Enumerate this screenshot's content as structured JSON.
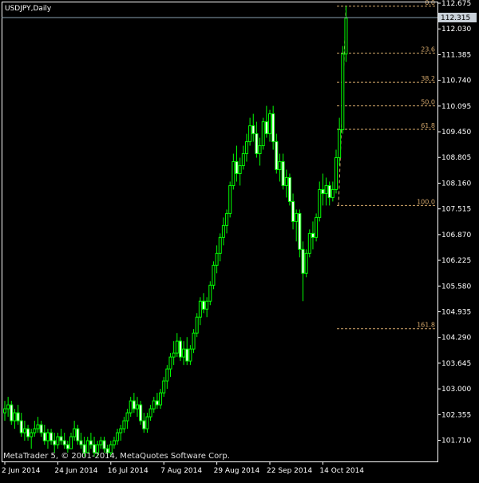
{
  "chart_data": {
    "type": "candlestick",
    "title": "USDJPY,Daily",
    "watermark": "MetaTrader 5, © 2001-2014, MetaQuotes Software Corp.",
    "current_price": "112.315",
    "ylim": [
      101.3,
      112.675
    ],
    "y_ticks": [
      "112.675",
      "112.030",
      "111.385",
      "110.740",
      "110.095",
      "109.450",
      "108.805",
      "108.160",
      "107.515",
      "106.870",
      "106.225",
      "105.580",
      "104.935",
      "104.290",
      "103.645",
      "103.000",
      "102.355",
      "101.710"
    ],
    "x_ticks": [
      {
        "label": "2 Jun 2014",
        "index": 0
      },
      {
        "label": "24 Jun 2014",
        "index": 16
      },
      {
        "label": "16 Jul 2014",
        "index": 32
      },
      {
        "label": "7 Aug 2014",
        "index": 48
      },
      {
        "label": "29 Aug 2014",
        "index": 64
      },
      {
        "label": "22 Sep 2014",
        "index": 80
      },
      {
        "label": "14 Oct 2014",
        "index": 96
      }
    ],
    "fibonacci": {
      "high": 112.6,
      "low": 107.6,
      "levels": [
        {
          "label": "0.0",
          "ratio": 0.0
        },
        {
          "label": "23.6",
          "ratio": 0.236
        },
        {
          "label": "38.2",
          "ratio": 0.382
        },
        {
          "label": "50.0",
          "ratio": 0.5
        },
        {
          "label": "61.8",
          "ratio": 0.618
        },
        {
          "label": "100.0",
          "ratio": 1.0
        },
        {
          "label": "161.8",
          "ratio": 1.618
        }
      ]
    },
    "candles": [
      [
        102.4,
        102.7,
        102.2,
        102.5
      ],
      [
        102.5,
        102.8,
        102.3,
        102.6
      ],
      [
        102.6,
        102.7,
        102.1,
        102.2
      ],
      [
        102.2,
        102.5,
        102.0,
        102.4
      ],
      [
        102.4,
        102.6,
        102.1,
        102.2
      ],
      [
        102.2,
        102.4,
        101.8,
        101.9
      ],
      [
        101.9,
        102.2,
        101.7,
        102.0
      ],
      [
        102.0,
        102.1,
        101.7,
        101.8
      ],
      [
        101.8,
        102.0,
        101.5,
        101.9
      ],
      [
        101.9,
        102.2,
        101.8,
        102.0
      ],
      [
        102.0,
        102.3,
        101.9,
        102.1
      ],
      [
        102.1,
        102.2,
        101.8,
        101.9
      ],
      [
        101.9,
        102.1,
        101.6,
        101.7
      ],
      [
        101.7,
        102.0,
        101.5,
        101.9
      ],
      [
        101.9,
        102.0,
        101.6,
        101.7
      ],
      [
        101.7,
        101.9,
        101.4,
        101.6
      ],
      [
        101.6,
        101.9,
        101.5,
        101.8
      ],
      [
        101.8,
        102.0,
        101.6,
        101.7
      ],
      [
        101.7,
        101.9,
        101.5,
        101.6
      ],
      [
        101.6,
        101.7,
        101.4,
        101.5
      ],
      [
        101.5,
        101.9,
        101.5,
        101.8
      ],
      [
        101.8,
        102.2,
        101.7,
        102.0
      ],
      [
        102.0,
        102.1,
        101.6,
        101.7
      ],
      [
        101.7,
        101.9,
        101.5,
        101.6
      ],
      [
        101.6,
        101.8,
        101.3,
        101.4
      ],
      [
        101.4,
        101.8,
        101.4,
        101.7
      ],
      [
        101.7,
        101.9,
        101.5,
        101.6
      ],
      [
        101.6,
        101.8,
        101.3,
        101.4
      ],
      [
        101.4,
        101.7,
        101.3,
        101.6
      ],
      [
        101.6,
        101.8,
        101.5,
        101.7
      ],
      [
        101.7,
        101.8,
        101.4,
        101.5
      ],
      [
        101.5,
        101.6,
        101.3,
        101.4
      ],
      [
        101.4,
        101.7,
        101.3,
        101.6
      ],
      [
        101.6,
        101.8,
        101.5,
        101.7
      ],
      [
        101.7,
        102.0,
        101.6,
        101.9
      ],
      [
        101.9,
        102.1,
        101.7,
        102.0
      ],
      [
        102.0,
        102.3,
        101.9,
        102.2
      ],
      [
        102.2,
        102.5,
        102.0,
        102.4
      ],
      [
        102.4,
        102.8,
        102.3,
        102.7
      ],
      [
        102.7,
        102.9,
        102.4,
        102.5
      ],
      [
        102.5,
        102.8,
        102.3,
        102.6
      ],
      [
        102.6,
        102.7,
        102.1,
        102.2
      ],
      [
        102.2,
        102.4,
        101.9,
        102.0
      ],
      [
        102.0,
        102.4,
        101.9,
        102.3
      ],
      [
        102.3,
        102.6,
        102.2,
        102.5
      ],
      [
        102.5,
        102.8,
        102.4,
        102.7
      ],
      [
        102.7,
        102.9,
        102.5,
        102.6
      ],
      [
        102.6,
        103.0,
        102.5,
        102.9
      ],
      [
        102.9,
        103.3,
        102.8,
        103.2
      ],
      [
        103.2,
        103.6,
        103.0,
        103.5
      ],
      [
        103.5,
        103.9,
        103.3,
        103.8
      ],
      [
        103.8,
        104.2,
        103.6,
        103.9
      ],
      [
        103.9,
        104.4,
        103.8,
        104.2
      ],
      [
        104.2,
        104.3,
        103.7,
        103.8
      ],
      [
        103.8,
        104.2,
        103.6,
        104.0
      ],
      [
        104.0,
        104.3,
        103.6,
        103.7
      ],
      [
        103.7,
        104.1,
        103.6,
        104.0
      ],
      [
        104.0,
        104.5,
        103.9,
        104.4
      ],
      [
        104.4,
        104.9,
        104.3,
        104.8
      ],
      [
        104.8,
        105.3,
        104.6,
        105.2
      ],
      [
        105.2,
        105.4,
        104.9,
        105.0
      ],
      [
        105.0,
        105.3,
        104.8,
        105.2
      ],
      [
        105.2,
        105.7,
        105.1,
        105.6
      ],
      [
        105.6,
        106.2,
        105.5,
        106.1
      ],
      [
        106.1,
        106.6,
        105.9,
        106.4
      ],
      [
        106.4,
        106.9,
        106.2,
        106.8
      ],
      [
        106.8,
        107.3,
        106.6,
        107.1
      ],
      [
        107.1,
        107.5,
        106.9,
        107.4
      ],
      [
        107.4,
        108.2,
        107.3,
        108.1
      ],
      [
        108.1,
        108.9,
        108.0,
        108.7
      ],
      [
        108.7,
        109.1,
        108.2,
        108.4
      ],
      [
        108.4,
        108.8,
        108.1,
        108.6
      ],
      [
        108.6,
        109.1,
        108.5,
        108.9
      ],
      [
        108.9,
        109.4,
        108.7,
        109.2
      ],
      [
        109.2,
        109.8,
        109.1,
        109.6
      ],
      [
        109.6,
        109.9,
        109.2,
        109.4
      ],
      [
        109.4,
        109.7,
        108.8,
        108.9
      ],
      [
        108.9,
        109.3,
        108.6,
        109.1
      ],
      [
        109.1,
        109.8,
        109.0,
        109.7
      ],
      [
        109.7,
        110.1,
        109.3,
        109.4
      ],
      [
        109.4,
        110.0,
        109.2,
        109.9
      ],
      [
        109.9,
        110.1,
        109.0,
        109.2
      ],
      [
        109.2,
        109.4,
        108.4,
        108.5
      ],
      [
        108.5,
        108.9,
        108.2,
        108.7
      ],
      [
        108.7,
        108.9,
        108.0,
        108.1
      ],
      [
        108.1,
        108.5,
        107.8,
        108.3
      ],
      [
        108.3,
        108.4,
        107.6,
        107.7
      ],
      [
        107.7,
        107.9,
        107.0,
        107.2
      ],
      [
        107.2,
        107.5,
        106.7,
        107.4
      ],
      [
        107.4,
        107.5,
        106.3,
        106.5
      ],
      [
        106.5,
        106.7,
        105.2,
        105.9
      ],
      [
        105.9,
        106.5,
        105.8,
        106.4
      ],
      [
        106.4,
        107.0,
        106.3,
        106.9
      ],
      [
        106.9,
        107.2,
        106.5,
        106.8
      ],
      [
        106.8,
        107.4,
        106.7,
        107.3
      ],
      [
        107.3,
        108.2,
        107.2,
        108.0
      ],
      [
        108.0,
        108.4,
        107.6,
        107.9
      ],
      [
        107.9,
        108.3,
        107.6,
        108.1
      ],
      [
        108.1,
        108.2,
        107.6,
        107.8
      ],
      [
        107.8,
        108.2,
        107.7,
        108.0
      ],
      [
        108.0,
        109.0,
        107.9,
        108.8
      ],
      [
        108.8,
        109.8,
        108.6,
        109.5
      ],
      [
        109.5,
        111.6,
        109.4,
        111.4
      ],
      [
        111.4,
        112.6,
        111.2,
        112.3
      ]
    ]
  }
}
